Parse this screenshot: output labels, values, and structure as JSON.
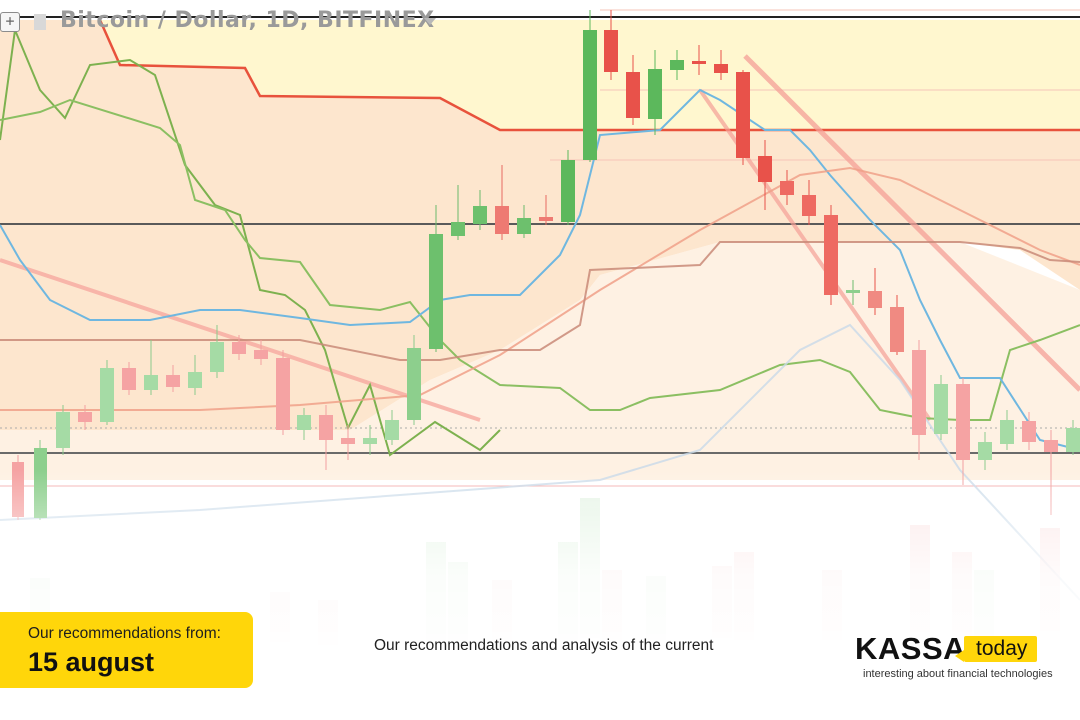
{
  "chart": {
    "title": "Bitcoin / Dollar, 1D, BITFINEX",
    "expand_glyph": "+",
    "colors": {
      "bull": "#5cb85c",
      "bear": "#e8524a",
      "cloud_upper": "#fff6c8",
      "cloud_lower": "#fde0c4",
      "kijun": "#e8523c",
      "tenkan": "#6fb7e0",
      "chikou": "#7db14f",
      "horizontal_line": "#555555"
    }
  },
  "recommendation": {
    "label": "Our recommendations from:",
    "date": "15 august"
  },
  "analysis": {
    "text": "Our recommendations and analysis of the current"
  },
  "logo": {
    "name": "KASSA",
    "badge": "today",
    "tagline": "interesting about financial technologies",
    "accent": "#ffd60a"
  }
}
